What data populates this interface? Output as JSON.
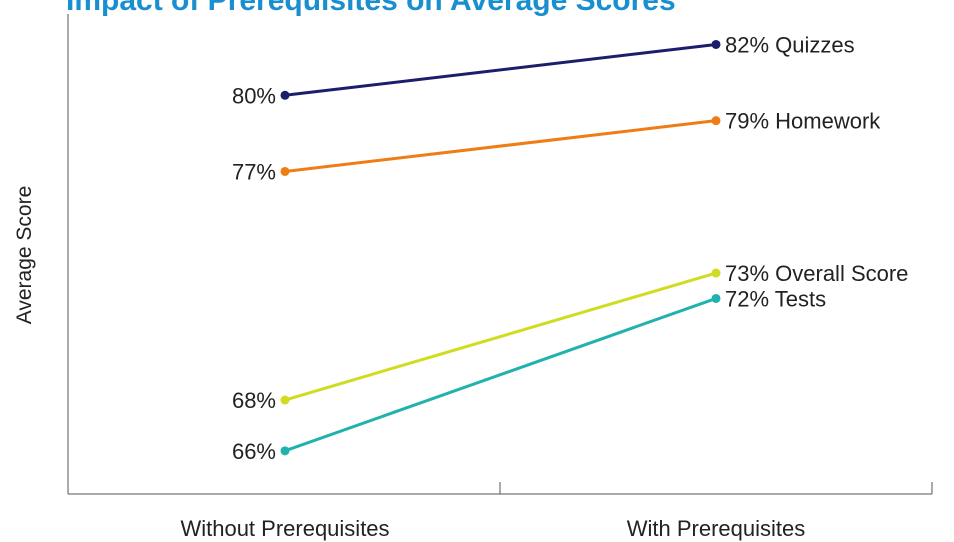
{
  "page": {
    "title_partial": "Impact of Prerequisites on Average Scores"
  },
  "colors": {
    "title": "#1a8fd0",
    "axis": "#555555",
    "text": "#222222"
  },
  "chart_data": {
    "type": "line",
    "title": "",
    "xlabel": "",
    "ylabel": "Average Score",
    "categories": [
      "Without Prerequisites",
      "With Prerequisites"
    ],
    "y_unit": "%",
    "ylim": [
      64.3,
      83.2
    ],
    "grid": false,
    "legend": "none (series labeled at right end of lines)",
    "series": [
      {
        "name": "Quizzes",
        "values": [
          80,
          82
        ],
        "color": "#1b1f6b",
        "start_label": "80%",
        "end_label": "82% Quizzes"
      },
      {
        "name": "Homework",
        "values": [
          77,
          79
        ],
        "color": "#ef7d16",
        "start_label": "77%",
        "end_label": "79% Homework"
      },
      {
        "name": "Overall Score",
        "values": [
          68,
          73
        ],
        "color": "#cfdc1f",
        "start_label": "68%",
        "end_label": "73% Overall Score"
      },
      {
        "name": "Tests",
        "values": [
          66,
          72
        ],
        "color": "#22b2ad",
        "start_label": "66%",
        "end_label": "72% Tests"
      }
    ]
  }
}
